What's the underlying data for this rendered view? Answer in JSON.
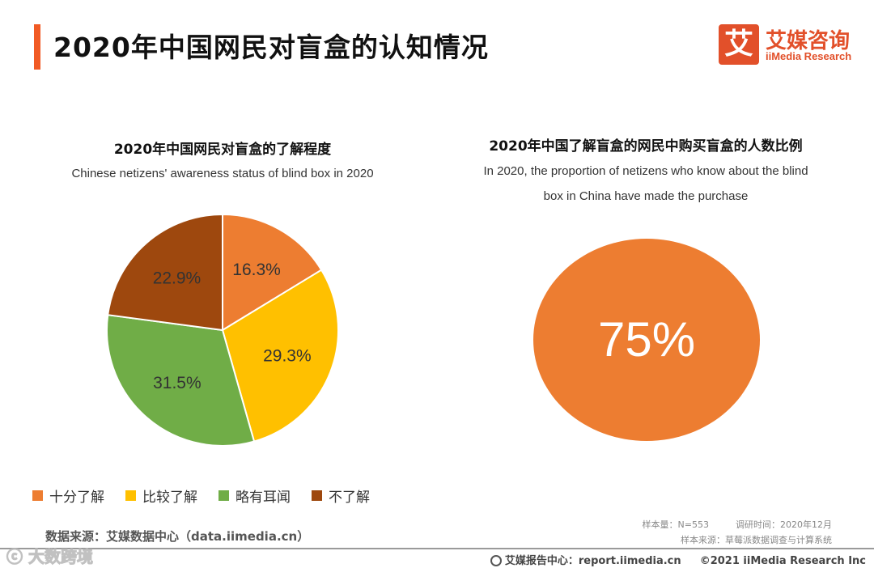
{
  "header": {
    "title": "2020年中国网民对盲盒的认知情况"
  },
  "logo": {
    "mark": "艾",
    "cn": "艾媒咨询",
    "en": "iiMedia Research"
  },
  "chart_data": [
    {
      "type": "pie",
      "title": "2020年中国网民对盲盒的了解程度",
      "subtitle": "Chinese netizens' awareness status of blind box in 2020",
      "categories": [
        "十分了解",
        "比较了解",
        "略有耳闻",
        "不了解"
      ],
      "values": [
        16.3,
        29.3,
        31.5,
        22.9
      ],
      "labels": [
        "16.3%",
        "29.3%",
        "31.5%",
        "22.9%"
      ],
      "colors": [
        "#ed7d31",
        "#ffc000",
        "#70ad47",
        "#9e480e"
      ],
      "legend": "bottom"
    },
    {
      "type": "pie",
      "title": "2020年中国了解盲盒的网民中购买盲盒的人数比例",
      "subtitle_lines": [
        "In 2020, the proportion of netizens who know about the blind",
        "box in China have made the purchase"
      ],
      "value": 75,
      "label": "75%",
      "color": "#ed7d31"
    }
  ],
  "legend": {
    "items": [
      {
        "label": "十分了解",
        "color": "#ed7d31"
      },
      {
        "label": "比较了解",
        "color": "#ffc000"
      },
      {
        "label": "略有耳闻",
        "color": "#70ad47"
      },
      {
        "label": "不了解",
        "color": "#9e480e"
      }
    ]
  },
  "footer": {
    "source": "数据来源：艾媒数据中心（data.iimedia.cn）",
    "sample_size": "样本量：N=553",
    "survey_time": "调研时间：2020年12月",
    "sample_source": "样本来源：草莓派数据调查与计算系统",
    "report_center": "艾媒报告中心：report.iimedia.cn",
    "copyright": "©2021  iiMedia Research  Inc",
    "watermark": "ⓒ 大数跨境"
  }
}
